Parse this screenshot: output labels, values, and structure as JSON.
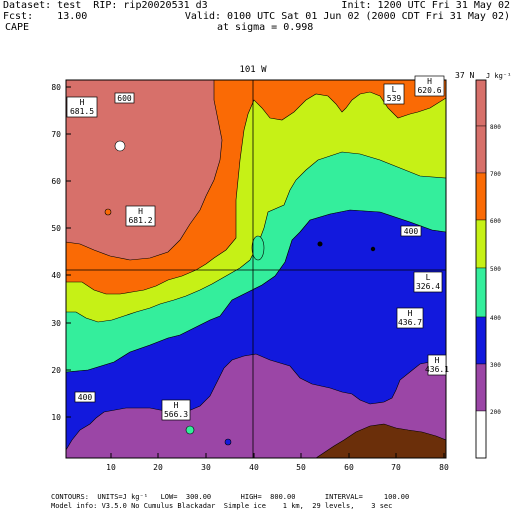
{
  "header": {
    "dataset": "Dataset: test  RIP: rip20020531 d3",
    "init": "Init: 1200 UTC Fri 31 May 02",
    "fcst": "Fcst:    13.00",
    "valid": "Valid: 0100 UTC Sat 01 Jun 02 (2000 CDT Fri 31 May 02)",
    "field": "CAPE",
    "sigma": "at sigma = 0.998"
  },
  "map": {
    "top_label": "101 W",
    "right_label": "37 N",
    "units_label": "J kg⁻¹",
    "x_ticks": [
      "10",
      "20",
      "30",
      "40",
      "50",
      "60",
      "70",
      "80"
    ],
    "y_ticks": [
      "10",
      "20",
      "30",
      "40",
      "50",
      "60",
      "70",
      "80"
    ],
    "legend_levels": [
      "800",
      "700",
      "600",
      "500",
      "400",
      "300",
      "200"
    ],
    "colors": {
      "c200": "#ffffff",
      "c300": "#9b46a6",
      "c400": "#1219dd",
      "c500": "#34ee9c",
      "c600": "#c6f116",
      "c700": "#fa6a05",
      "c800": "#d7706a",
      "brown": "#6b2f0a"
    },
    "markers": [
      {
        "letter": "H",
        "value": "681.5"
      },
      {
        "letter": "",
        "value": "600"
      },
      {
        "letter": "L",
        "value": "539"
      },
      {
        "letter": "H",
        "value": "620.6"
      },
      {
        "letter": "H",
        "value": "681.2"
      },
      {
        "letter": "",
        "value": "400"
      },
      {
        "letter": "L",
        "value": "326.4"
      },
      {
        "letter": "H",
        "value": "436.7"
      },
      {
        "letter": "H",
        "value": "436.1"
      },
      {
        "letter": "",
        "value": "400"
      },
      {
        "letter": "H",
        "value": "566.3"
      }
    ]
  },
  "footer": {
    "line1": "CONTOURS:  UNITS=J kg⁻¹   LOW=  300.00       HIGH=  800.00       INTERVAL=     100.00",
    "line2": "Model info: V3.5.0 No Cumulus Blackadar  Simple ice    1 km,  29 levels,    3 sec"
  }
}
